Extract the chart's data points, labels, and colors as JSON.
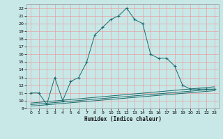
{
  "xlabel": "Humidex (Indice chaleur)",
  "bg_color": "#c8e8e8",
  "grid_color": "#e8a0a0",
  "line_color": "#1a6b6b",
  "xlim": [
    -0.5,
    23.5
  ],
  "ylim": [
    9,
    22.5
  ],
  "yticks": [
    9,
    10,
    11,
    12,
    13,
    14,
    15,
    16,
    17,
    18,
    19,
    20,
    21,
    22
  ],
  "xticks": [
    0,
    1,
    2,
    3,
    4,
    5,
    6,
    7,
    8,
    9,
    10,
    11,
    12,
    13,
    14,
    15,
    16,
    17,
    18,
    19,
    20,
    21,
    22,
    23
  ],
  "main_line": {
    "x": [
      0,
      1,
      2,
      3,
      4,
      5,
      6,
      7,
      8,
      9,
      10,
      11,
      12,
      13,
      14,
      15,
      16,
      17,
      18,
      19,
      20,
      21,
      22,
      23
    ],
    "y": [
      11,
      11,
      9.5,
      13,
      10.0,
      12.5,
      13.0,
      15.0,
      18.5,
      19.5,
      20.5,
      21.0,
      22.0,
      20.5,
      20.0,
      16.0,
      15.5,
      15.5,
      14.5,
      12.0,
      11.5,
      11.5,
      11.5,
      11.5
    ]
  },
  "flat_line1": {
    "x": [
      0,
      23
    ],
    "y": [
      9.7,
      11.8
    ]
  },
  "flat_line2": {
    "x": [
      0,
      23
    ],
    "y": [
      9.5,
      11.5
    ]
  },
  "flat_line3": {
    "x": [
      0,
      23
    ],
    "y": [
      9.3,
      11.3
    ]
  }
}
